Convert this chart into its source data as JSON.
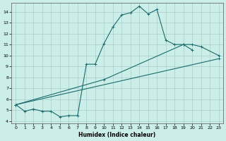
{
  "background_color": "#cceee8",
  "grid_color": "#aacccc",
  "line_color": "#1a6b6b",
  "xlim": [
    -0.5,
    23.5
  ],
  "ylim": [
    3.8,
    14.8
  ],
  "yticks": [
    4,
    5,
    6,
    7,
    8,
    9,
    10,
    11,
    12,
    13,
    14
  ],
  "xticks": [
    0,
    1,
    2,
    3,
    4,
    5,
    6,
    7,
    8,
    9,
    10,
    11,
    12,
    13,
    14,
    15,
    16,
    17,
    18,
    19,
    20,
    21,
    22,
    23
  ],
  "xlabel": "Humidex (Indice chaleur)",
  "line1_x": [
    0,
    1,
    2,
    3,
    4,
    5,
    6,
    7,
    8,
    9,
    10,
    11,
    12,
    13,
    14,
    15,
    16,
    17,
    18,
    19,
    20
  ],
  "line1_y": [
    5.5,
    4.9,
    5.1,
    4.9,
    4.9,
    4.4,
    4.5,
    4.5,
    9.2,
    9.2,
    11.1,
    12.6,
    13.7,
    13.9,
    14.5,
    13.8,
    14.2,
    11.4,
    11.0,
    11.0,
    10.5
  ],
  "line2_x": [
    0,
    10,
    19,
    20,
    21,
    23
  ],
  "line2_y": [
    5.5,
    7.8,
    11.0,
    11.0,
    10.8,
    10.0
  ],
  "line3_x": [
    0,
    23
  ],
  "line3_y": [
    5.5,
    9.7
  ]
}
